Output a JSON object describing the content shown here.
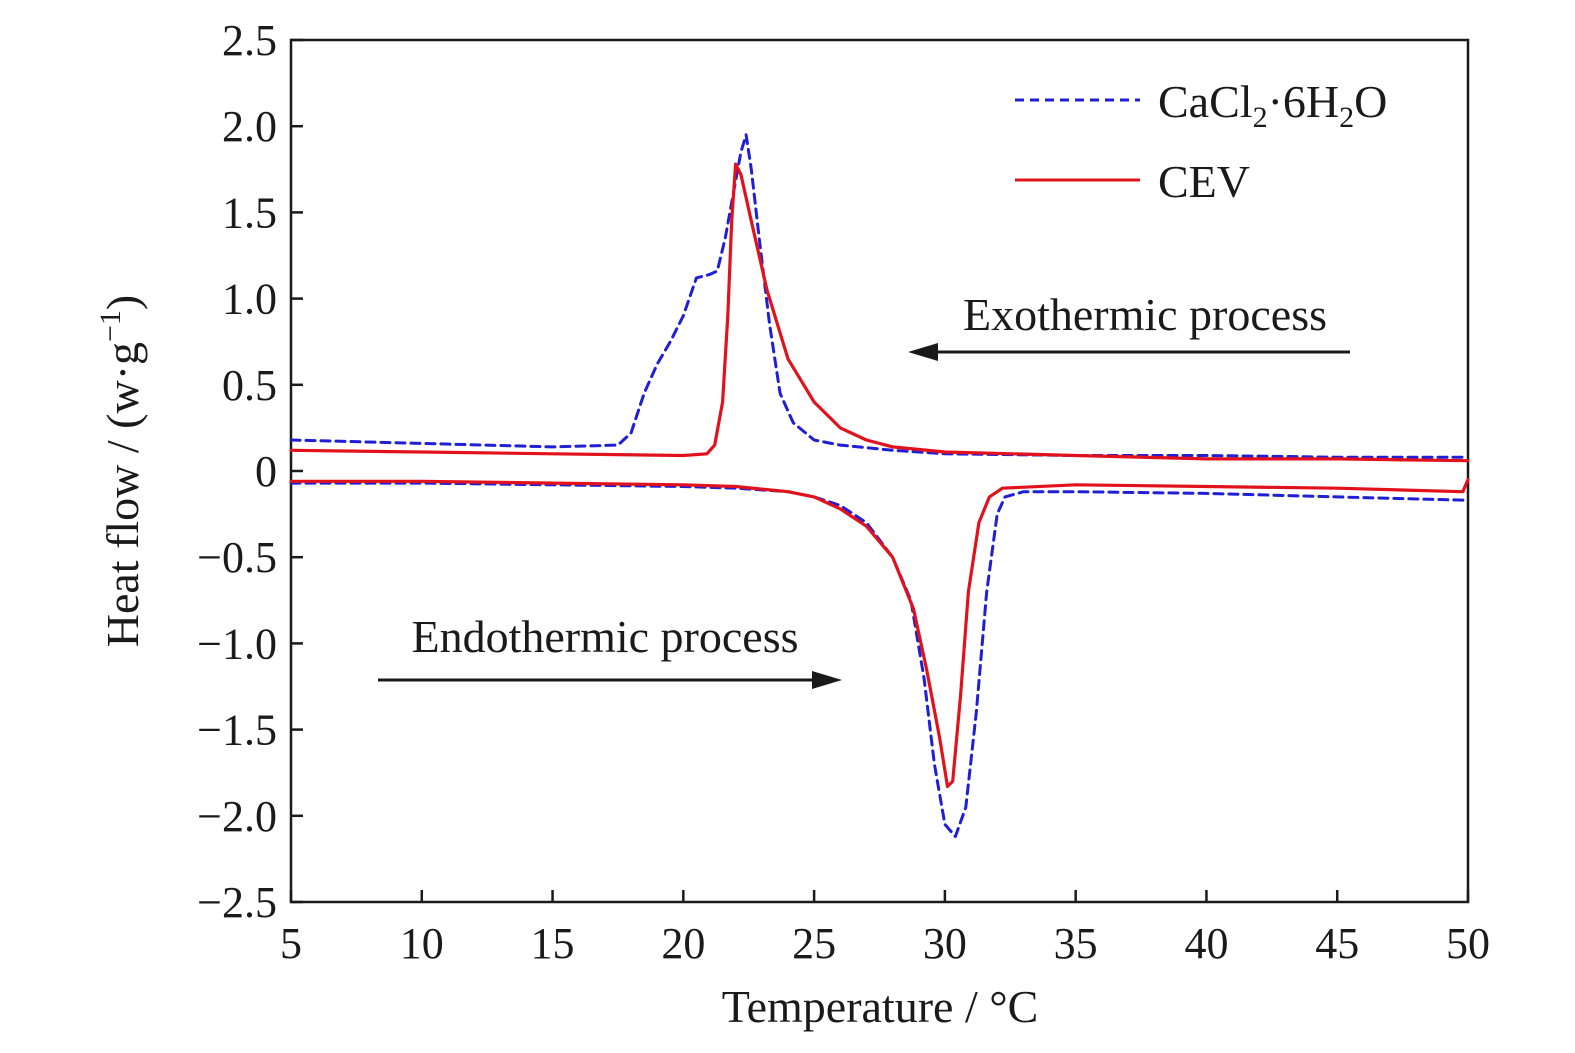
{
  "chart_data": {
    "type": "line",
    "xlabel": "Temperature / °C",
    "ylabel_main": "Heat flow / (w·g",
    "ylabel_sup": "−1",
    "ylabel_close": ")",
    "xlim": [
      5,
      50
    ],
    "ylim": [
      -2.5,
      2.5
    ],
    "xticks": [
      5,
      10,
      15,
      20,
      25,
      30,
      35,
      40,
      45,
      50
    ],
    "yticks": [
      2.5,
      2.0,
      1.5,
      1.0,
      0.5,
      0,
      -0.5,
      -1.0,
      -1.5,
      -2.0,
      -2.5
    ],
    "ytick_labels": [
      "2.5",
      "2.0",
      "1.5",
      "1.0",
      "0.5",
      "0",
      "−0.5",
      "−1.0",
      "−1.5",
      "−2.0",
      "−2.5"
    ],
    "grid": false,
    "legend_position": "top-right",
    "annotations": [
      {
        "text": "Exothermic process",
        "direction": "left"
      },
      {
        "text": "Endothermic process",
        "direction": "right"
      }
    ],
    "series": [
      {
        "name": "CaCl2·6H2O",
        "legend_parts": [
          "CaCl",
          "2",
          "·6H",
          "2",
          "O"
        ],
        "color": "#1f1fd6",
        "dash": "dashed",
        "segments": [
          [
            [
              5,
              0.18
            ],
            [
              10,
              0.16
            ],
            [
              15,
              0.14
            ],
            [
              17.5,
              0.15
            ],
            [
              18,
              0.22
            ],
            [
              18.5,
              0.45
            ],
            [
              19,
              0.62
            ],
            [
              19.5,
              0.75
            ],
            [
              20,
              0.9
            ],
            [
              20.5,
              1.12
            ],
            [
              21,
              1.14
            ],
            [
              21.3,
              1.16
            ],
            [
              21.6,
              1.35
            ],
            [
              21.9,
              1.6
            ],
            [
              22.2,
              1.85
            ],
            [
              22.4,
              1.95
            ],
            [
              22.6,
              1.75
            ],
            [
              22.9,
              1.35
            ],
            [
              23.3,
              0.85
            ],
            [
              23.7,
              0.45
            ],
            [
              24.2,
              0.28
            ],
            [
              25,
              0.18
            ],
            [
              26,
              0.15
            ],
            [
              28,
              0.12
            ],
            [
              30,
              0.1
            ],
            [
              35,
              0.09
            ],
            [
              40,
              0.09
            ],
            [
              45,
              0.08
            ],
            [
              50,
              0.08
            ]
          ],
          [
            [
              5,
              -0.07
            ],
            [
              10,
              -0.07
            ],
            [
              15,
              -0.08
            ],
            [
              20,
              -0.09
            ],
            [
              22,
              -0.1
            ],
            [
              24,
              -0.12
            ],
            [
              25,
              -0.15
            ],
            [
              26,
              -0.2
            ],
            [
              27,
              -0.3
            ],
            [
              28,
              -0.5
            ],
            [
              28.7,
              -0.75
            ],
            [
              29.2,
              -1.2
            ],
            [
              29.6,
              -1.7
            ],
            [
              30,
              -2.05
            ],
            [
              30.4,
              -2.12
            ],
            [
              30.8,
              -1.95
            ],
            [
              31.2,
              -1.4
            ],
            [
              31.6,
              -0.7
            ],
            [
              32,
              -0.25
            ],
            [
              32.3,
              -0.15
            ],
            [
              33,
              -0.12
            ],
            [
              35,
              -0.12
            ],
            [
              40,
              -0.13
            ],
            [
              45,
              -0.15
            ],
            [
              50,
              -0.17
            ]
          ]
        ]
      },
      {
        "name": "CEV",
        "legend_parts": [
          "CEV"
        ],
        "color": "#e2121d",
        "dash": "solid",
        "segments": [
          [
            [
              5,
              0.12
            ],
            [
              10,
              0.11
            ],
            [
              15,
              0.1
            ],
            [
              20,
              0.09
            ],
            [
              20.9,
              0.1
            ],
            [
              21.2,
              0.15
            ],
            [
              21.5,
              0.4
            ],
            [
              21.7,
              0.9
            ],
            [
              21.85,
              1.45
            ],
            [
              22,
              1.78
            ],
            [
              22.2,
              1.72
            ],
            [
              22.6,
              1.45
            ],
            [
              23.2,
              1.05
            ],
            [
              24,
              0.65
            ],
            [
              25,
              0.4
            ],
            [
              26,
              0.25
            ],
            [
              27,
              0.18
            ],
            [
              28,
              0.14
            ],
            [
              30,
              0.11
            ],
            [
              35,
              0.09
            ],
            [
              40,
              0.07
            ],
            [
              45,
              0.07
            ],
            [
              50,
              0.06
            ]
          ],
          [
            [
              5,
              -0.06
            ],
            [
              10,
              -0.06
            ],
            [
              15,
              -0.07
            ],
            [
              20,
              -0.08
            ],
            [
              22,
              -0.09
            ],
            [
              24,
              -0.12
            ],
            [
              25,
              -0.15
            ],
            [
              26,
              -0.22
            ],
            [
              27,
              -0.32
            ],
            [
              28,
              -0.5
            ],
            [
              28.8,
              -0.8
            ],
            [
              29.3,
              -1.15
            ],
            [
              29.8,
              -1.55
            ],
            [
              30.1,
              -1.83
            ],
            [
              30.3,
              -1.8
            ],
            [
              30.6,
              -1.3
            ],
            [
              30.9,
              -0.7
            ],
            [
              31.3,
              -0.3
            ],
            [
              31.7,
              -0.15
            ],
            [
              32.2,
              -0.1
            ],
            [
              35,
              -0.08
            ],
            [
              40,
              -0.09
            ],
            [
              45,
              -0.1
            ],
            [
              49.8,
              -0.12
            ],
            [
              50,
              -0.05
            ]
          ]
        ]
      }
    ]
  }
}
